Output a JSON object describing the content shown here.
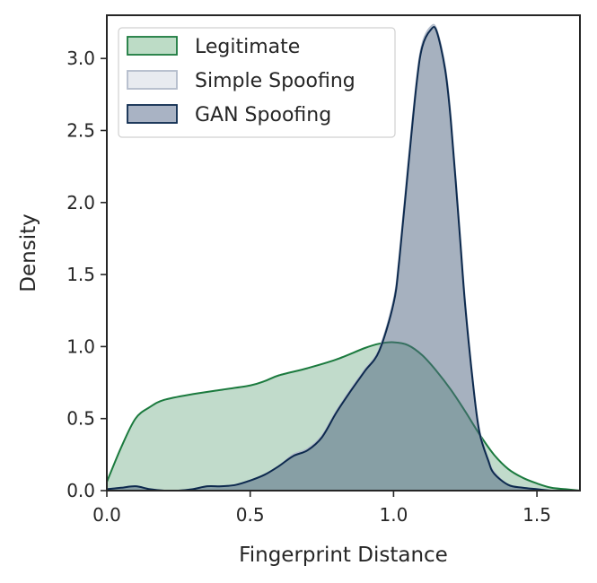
{
  "chart_data": {
    "type": "area",
    "title": "",
    "xlabel": "Fingerprint Distance",
    "ylabel": "Density",
    "xlim": [
      0.0,
      1.65
    ],
    "ylim": [
      0.0,
      3.3
    ],
    "xticks": [
      0.0,
      0.5,
      1.0,
      1.5
    ],
    "xtick_labels": [
      "0.0",
      "0.5",
      "1.0",
      "1.5"
    ],
    "yticks": [
      0.0,
      0.5,
      1.0,
      1.5,
      2.0,
      2.5,
      3.0
    ],
    "ytick_labels": [
      "0.0",
      "0.5",
      "1.0",
      "1.5",
      "2.0",
      "2.5",
      "3.0"
    ],
    "grid": false,
    "legend_position": "top-left",
    "series": [
      {
        "name": "Legitimate",
        "color": "#1b7a3e",
        "fill": "#bddcc6",
        "x": [
          0.0,
          0.05,
          0.1,
          0.15,
          0.2,
          0.3,
          0.4,
          0.5,
          0.55,
          0.6,
          0.7,
          0.8,
          0.9,
          0.95,
          1.0,
          1.05,
          1.1,
          1.15,
          1.2,
          1.25,
          1.3,
          1.35,
          1.4,
          1.45,
          1.5,
          1.55,
          1.6,
          1.65
        ],
        "y": [
          0.06,
          0.3,
          0.5,
          0.58,
          0.63,
          0.67,
          0.7,
          0.73,
          0.76,
          0.8,
          0.85,
          0.91,
          0.99,
          1.02,
          1.03,
          1.01,
          0.94,
          0.83,
          0.7,
          0.55,
          0.39,
          0.25,
          0.15,
          0.09,
          0.05,
          0.02,
          0.01,
          0.0
        ]
      },
      {
        "name": "Simple Spoofing",
        "color": "#b3bccb",
        "fill": "#e8ebf0",
        "x": [
          0.0,
          0.05,
          0.1,
          0.15,
          0.2,
          0.25,
          0.3,
          0.35,
          0.4,
          0.45,
          0.5,
          0.55,
          0.6,
          0.65,
          0.7,
          0.75,
          0.8,
          0.85,
          0.9,
          0.95,
          1.0,
          1.02,
          1.05,
          1.08,
          1.1,
          1.13,
          1.15,
          1.18,
          1.2,
          1.23,
          1.25,
          1.28,
          1.3,
          1.33,
          1.35,
          1.4,
          1.45,
          1.5,
          1.55,
          1.6,
          1.65
        ],
        "y": [
          0.01,
          0.02,
          0.03,
          0.01,
          0.0,
          0.0,
          0.01,
          0.03,
          0.03,
          0.04,
          0.07,
          0.11,
          0.17,
          0.25,
          0.29,
          0.38,
          0.55,
          0.7,
          0.84,
          0.98,
          1.32,
          1.62,
          2.25,
          2.84,
          3.1,
          3.22,
          3.2,
          2.94,
          2.58,
          1.82,
          1.3,
          0.7,
          0.41,
          0.22,
          0.13,
          0.04,
          0.02,
          0.01,
          0.0,
          0.0,
          0.0
        ]
      },
      {
        "name": "GAN Spoofing",
        "color": "#0d2a4e",
        "fill": "#a9b3c4",
        "x": [
          0.0,
          0.05,
          0.1,
          0.15,
          0.2,
          0.25,
          0.3,
          0.35,
          0.4,
          0.45,
          0.5,
          0.55,
          0.6,
          0.65,
          0.7,
          0.75,
          0.8,
          0.85,
          0.9,
          0.95,
          1.0,
          1.02,
          1.05,
          1.08,
          1.1,
          1.13,
          1.15,
          1.18,
          1.2,
          1.23,
          1.25,
          1.28,
          1.3,
          1.33,
          1.35,
          1.4,
          1.45,
          1.5,
          1.55,
          1.6,
          1.65
        ],
        "y": [
          0.01,
          0.02,
          0.03,
          0.01,
          0.0,
          0.0,
          0.01,
          0.03,
          0.03,
          0.04,
          0.07,
          0.11,
          0.17,
          0.24,
          0.28,
          0.37,
          0.54,
          0.69,
          0.83,
          0.97,
          1.3,
          1.6,
          2.22,
          2.82,
          3.08,
          3.2,
          3.19,
          2.92,
          2.56,
          1.8,
          1.28,
          0.69,
          0.4,
          0.21,
          0.12,
          0.04,
          0.02,
          0.01,
          0.0,
          0.0,
          0.0
        ]
      }
    ]
  }
}
